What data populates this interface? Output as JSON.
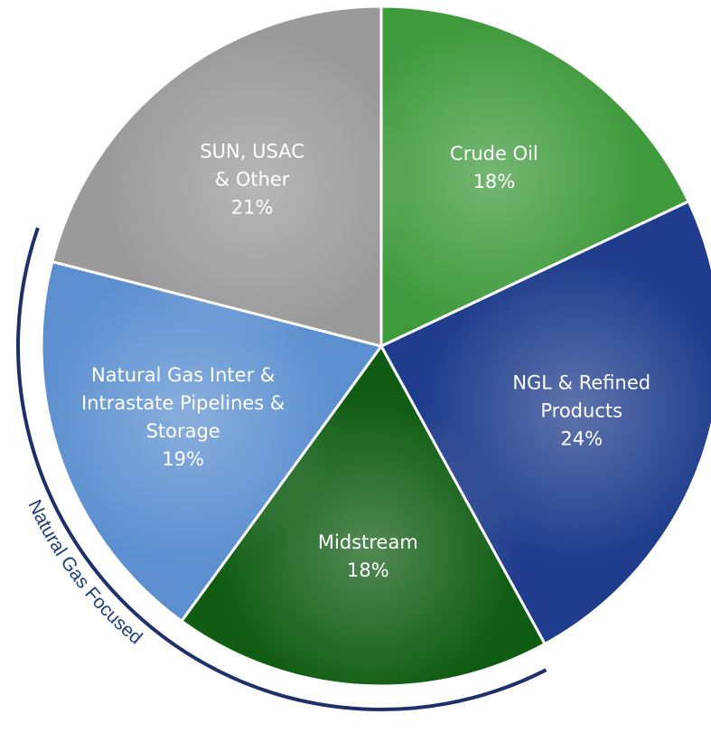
{
  "chart_data": {
    "type": "pie",
    "categories": [
      "Crude Oil",
      "NGL & Refined Products",
      "Midstream",
      "Natural Gas Inter & Intrastate Pipelines & Storage",
      "SUN, USAC & Other"
    ],
    "values": [
      18,
      24,
      18,
      19,
      21
    ],
    "value_labels": [
      "18%",
      "24%",
      "18%",
      "19%",
      "21%"
    ],
    "colors": [
      "#3f9a3c",
      "#1f3d8c",
      "#0f5c12",
      "#5b8fd0",
      "#9a9a9a"
    ],
    "annotation": "Natural Gas Focused"
  }
}
